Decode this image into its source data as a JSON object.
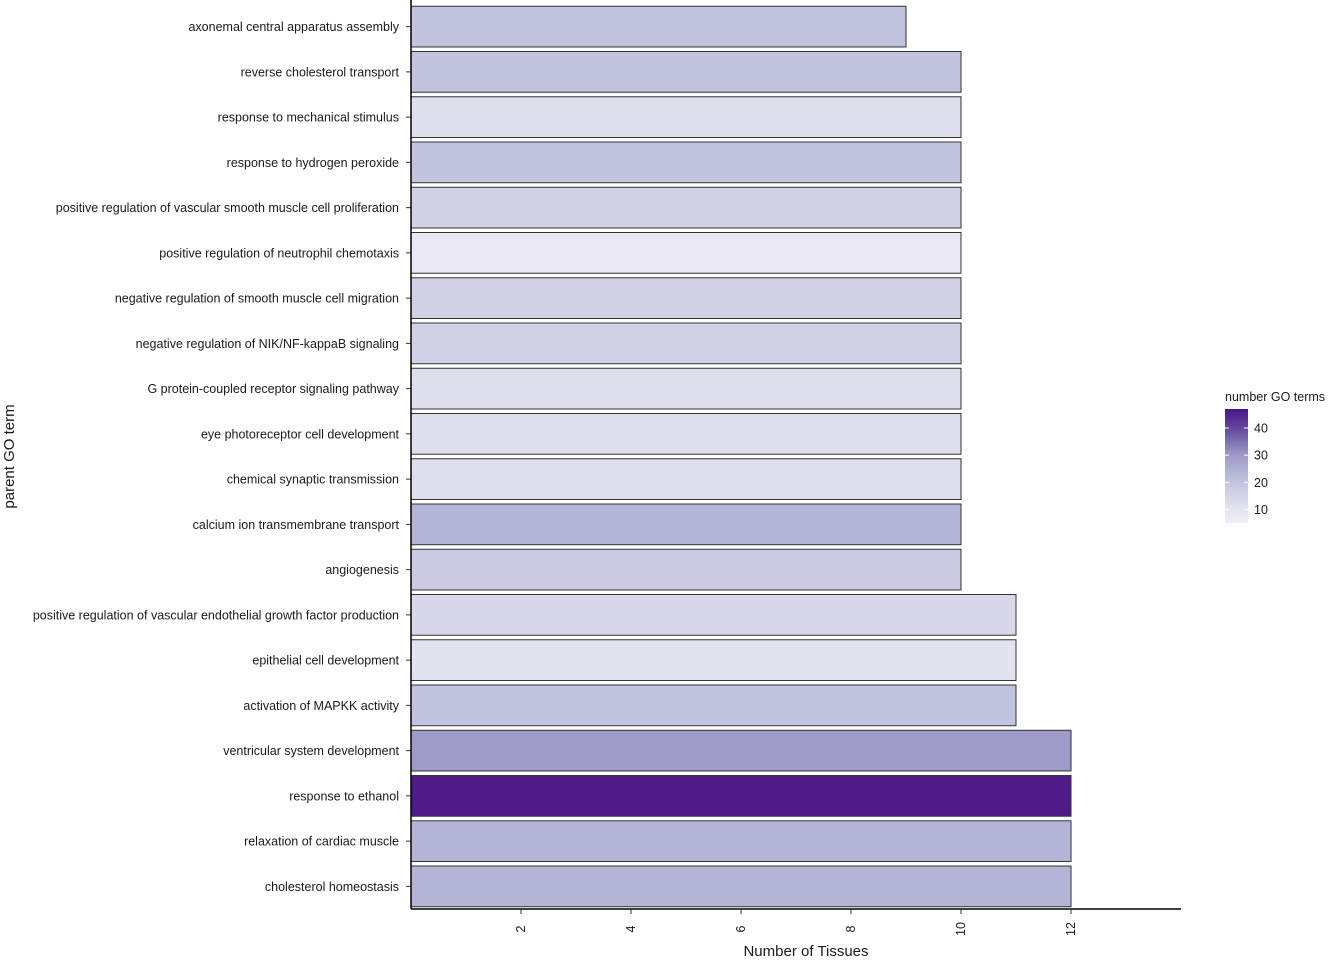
{
  "chart_data": {
    "type": "bar",
    "orientation": "horizontal",
    "xlabel": "Number of Tissues",
    "ylabel": "parent GO term",
    "xlim": [
      0,
      14
    ],
    "xticks": [
      2,
      4,
      6,
      8,
      10,
      12
    ],
    "grid": false,
    "legend": {
      "title": "number GO terms",
      "placement": "right",
      "type": "colorbar",
      "range": [
        5,
        47
      ],
      "ticks": [
        10,
        20,
        30,
        40
      ],
      "colors": [
        "#f1f0f7",
        "#dadaeb",
        "#bcbddc",
        "#9e9ac8",
        "#6a51a3",
        "#4a1486"
      ]
    },
    "categories": [
      "axonemal central apparatus assembly",
      "reverse cholesterol transport",
      "response to mechanical stimulus",
      "response to hydrogen peroxide",
      "positive regulation of vascular smooth muscle cell proliferation",
      "positive regulation of neutrophil chemotaxis",
      "negative regulation of smooth muscle cell migration",
      "negative regulation of NIK/NF-kappaB signaling",
      "G protein-coupled receptor signaling pathway",
      "eye photoreceptor cell development",
      "chemical synaptic transmission",
      "calcium ion transmembrane transport",
      "angiogenesis",
      "positive regulation of vascular endothelial growth factor production",
      "epithelial cell development",
      "activation of MAPKK activity",
      "ventricular system development",
      "response to ethanol",
      "relaxation of cardiac muscle",
      "cholesterol homeostasis"
    ],
    "values": [
      9,
      10,
      10,
      10,
      10,
      10,
      10,
      10,
      10,
      10,
      10,
      10,
      10,
      11,
      11,
      11,
      12,
      12,
      12,
      12
    ],
    "go_term_counts": [
      20,
      20,
      12,
      20,
      16,
      8,
      16,
      16,
      12,
      12,
      12,
      24,
      18,
      14,
      10,
      20,
      30,
      46,
      24,
      24
    ]
  }
}
